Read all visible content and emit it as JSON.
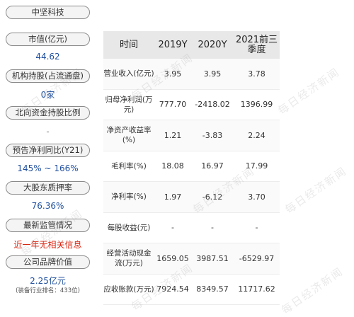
{
  "company_name": "中坚科技",
  "sidebar": {
    "market_cap": {
      "label": "市值(亿元)",
      "value": "44.62"
    },
    "institutions": {
      "label": "机构持股(占流通盘)",
      "value": "0家"
    },
    "northbound": {
      "label": "北向资金持股比例",
      "value": "-"
    },
    "profit_forecast": {
      "label": "预告净利同比(Y21)",
      "value": "145% ~ 166%"
    },
    "pledge": {
      "label": "大股东质押率",
      "value": "76.36%"
    },
    "regulation": {
      "label": "最新监管情况",
      "value": "近一年无相关信息"
    },
    "brand_value": {
      "label": "公司品牌价值",
      "value": "2.25亿元",
      "note": "(装备行业排名：433位)"
    }
  },
  "table": {
    "headers": [
      "时间",
      "2019Y",
      "2020Y",
      "2021前三季度"
    ],
    "rows": [
      {
        "label": "营业收入(亿元)",
        "v": [
          "3.95",
          "3.95",
          "3.78"
        ]
      },
      {
        "label": "归母净利润(万元)",
        "v": [
          "777.70",
          "-2418.02",
          "1396.99"
        ]
      },
      {
        "label": "净资产收益率(%)",
        "v": [
          "1.21",
          "-3.83",
          "2.24"
        ]
      },
      {
        "label": "毛利率(%)",
        "v": [
          "18.08",
          "16.97",
          "17.99"
        ]
      },
      {
        "label": "净利率(%)",
        "v": [
          "1.97",
          "-6.12",
          "3.70"
        ]
      },
      {
        "label": "每股收益(元)",
        "v": [
          "-",
          "-",
          "-"
        ]
      },
      {
        "label": "经营活动现金流(万元)",
        "v": [
          "1659.05",
          "3987.51",
          "-6529.97"
        ]
      },
      {
        "label": "应收账款(万元)",
        "v": [
          "7924.54",
          "8349.57",
          "11717.62"
        ]
      }
    ]
  },
  "watermark": "每日经济新闻"
}
